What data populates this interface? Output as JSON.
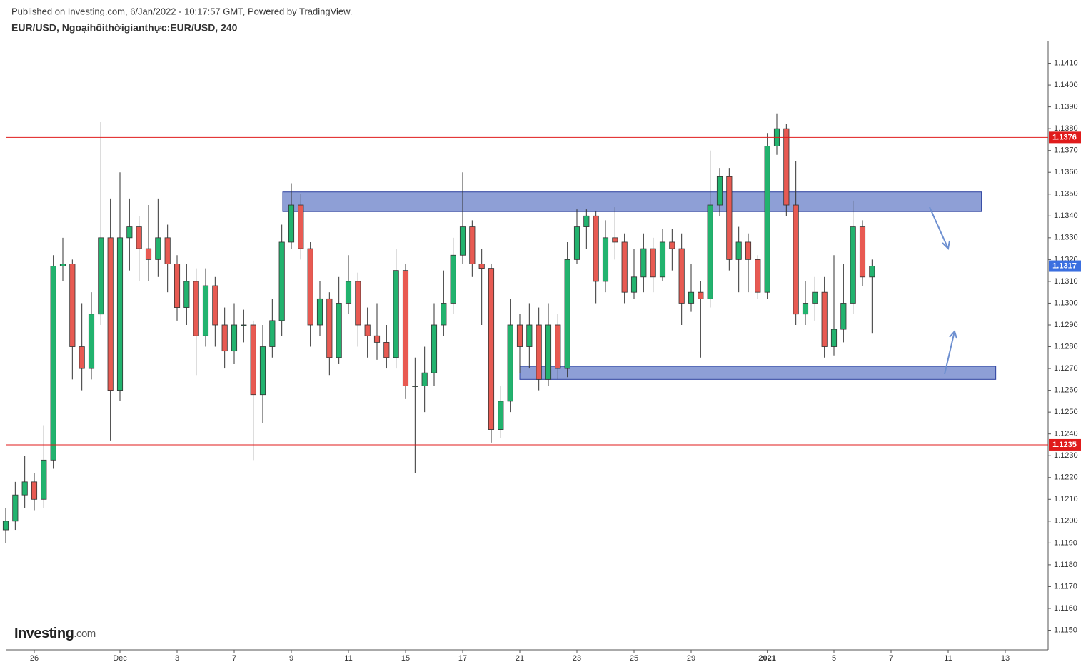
{
  "chart_data": {
    "type": "candlestick",
    "header": "Published on Investing.com, 6/Jan/2022 - 10:17:57 GMT, Powered by TradingView.",
    "title": "EUR/USD, Ngoạihốithờigianthực:EUR/USD, 240",
    "logo": "Investing",
    "logo_suffix": ".com",
    "up_color": "#22b36e",
    "down_color": "#e85a52",
    "xlim": [
      0,
      219
    ],
    "ylim": [
      1.1141,
      1.142
    ],
    "xticks": [
      {
        "value": 6,
        "label": "26"
      },
      {
        "value": 24,
        "label": "Dec"
      },
      {
        "value": 36,
        "label": "3"
      },
      {
        "value": 48,
        "label": "7"
      },
      {
        "value": 60,
        "label": "9"
      },
      {
        "value": 72,
        "label": "11"
      },
      {
        "value": 84,
        "label": "15"
      },
      {
        "value": 96,
        "label": "17"
      },
      {
        "value": 108,
        "label": "21"
      },
      {
        "value": 120,
        "label": "23"
      },
      {
        "value": 132,
        "label": "25"
      },
      {
        "value": 144,
        "label": "29"
      },
      {
        "value": 160,
        "label": "2021"
      },
      {
        "value": 174,
        "label": "5"
      },
      {
        "value": 186,
        "label": "7"
      },
      {
        "value": 198,
        "label": "11"
      },
      {
        "value": 210,
        "label": "13"
      }
    ],
    "yticks": [
      {
        "value": 1.115,
        "label": "1.1150"
      },
      {
        "value": 1.116,
        "label": "1.1160"
      },
      {
        "value": 1.117,
        "label": "1.1170"
      },
      {
        "value": 1.118,
        "label": "1.1180"
      },
      {
        "value": 1.119,
        "label": "1.1190"
      },
      {
        "value": 1.12,
        "label": "1.1200"
      },
      {
        "value": 1.121,
        "label": "1.1210"
      },
      {
        "value": 1.122,
        "label": "1.1220"
      },
      {
        "value": 1.123,
        "label": "1.1230"
      },
      {
        "value": 1.124,
        "label": "1.1240"
      },
      {
        "value": 1.125,
        "label": "1.1250"
      },
      {
        "value": 1.126,
        "label": "1.1260"
      },
      {
        "value": 1.127,
        "label": "1.1270"
      },
      {
        "value": 1.128,
        "label": "1.1280"
      },
      {
        "value": 1.129,
        "label": "1.1290"
      },
      {
        "value": 1.13,
        "label": "1.1300"
      },
      {
        "value": 1.131,
        "label": "1.1310"
      },
      {
        "value": 1.132,
        "label": "1.1320"
      },
      {
        "value": 1.133,
        "label": "1.1330"
      },
      {
        "value": 1.134,
        "label": "1.1340"
      },
      {
        "value": 1.135,
        "label": "1.1350"
      },
      {
        "value": 1.136,
        "label": "1.1360"
      },
      {
        "value": 1.137,
        "label": "1.1370"
      },
      {
        "value": 1.138,
        "label": "1.1380"
      },
      {
        "value": 1.139,
        "label": "1.1390"
      },
      {
        "value": 1.14,
        "label": "1.1400"
      },
      {
        "value": 1.141,
        "label": "1.1410"
      }
    ],
    "levels": [
      {
        "value": 1.1376,
        "color": "#e01b1b"
      },
      {
        "value": 1.1235,
        "color": "#e01b1b"
      }
    ],
    "price_line": {
      "value": 1.1317,
      "color": "#3b6fe0"
    },
    "zones": [
      {
        "x": [
          58.2,
          205
        ],
        "y": [
          1.1342,
          1.1351
        ]
      },
      {
        "x": [
          108,
          208
        ],
        "y": [
          1.1265,
          1.1271
        ]
      }
    ],
    "series": {
      "x": [
        0,
        2,
        4,
        6,
        8,
        10,
        12,
        14,
        16,
        18,
        20,
        22,
        24,
        26,
        28,
        30,
        32,
        34,
        36,
        38,
        40,
        42,
        44,
        46,
        48,
        50,
        52,
        54,
        56,
        58,
        60,
        62,
        64,
        66,
        68,
        70,
        72,
        74,
        76,
        78,
        80,
        82,
        84,
        86,
        88,
        90,
        92,
        94,
        96,
        98,
        100,
        102,
        104,
        106,
        108,
        110,
        112,
        114,
        116,
        118,
        120,
        122,
        124,
        126,
        128,
        130,
        132,
        134,
        136,
        138,
        140,
        142,
        144,
        146,
        148,
        150,
        152,
        154,
        156,
        158,
        160,
        162,
        164,
        166,
        168,
        170,
        172,
        174,
        176,
        178,
        180,
        182
      ],
      "open": [
        1.1196,
        1.12,
        1.1212,
        1.1218,
        1.121,
        1.1228,
        1.1317,
        1.1318,
        1.128,
        1.127,
        1.1295,
        1.133,
        1.126,
        1.133,
        1.1335,
        1.1325,
        1.132,
        1.133,
        1.1318,
        1.1298,
        1.131,
        1.1285,
        1.1308,
        1.129,
        1.1278,
        1.129,
        1.129,
        1.1258,
        1.128,
        1.1292,
        1.1328,
        1.1345,
        1.1325,
        1.129,
        1.1302,
        1.1275,
        1.13,
        1.131,
        1.129,
        1.1285,
        1.1282,
        1.1275,
        1.1315,
        1.1262,
        1.1262,
        1.1268,
        1.129,
        1.13,
        1.1322,
        1.1335,
        1.1318,
        1.1316,
        1.1242,
        1.1255,
        1.129,
        1.128,
        1.129,
        1.1265,
        1.129,
        1.127,
        1.132,
        1.1335,
        1.134,
        1.131,
        1.133,
        1.1328,
        1.1305,
        1.1312,
        1.1325,
        1.1312,
        1.1328,
        1.1325,
        1.13,
        1.1305,
        1.1302,
        1.1345,
        1.1358,
        1.132,
        1.1328,
        1.132,
        1.1305,
        1.1372,
        1.138,
        1.1345,
        1.1295,
        1.13,
        1.1305,
        1.128,
        1.1288,
        1.13,
        1.1335,
        1.1312
      ],
      "high": [
        1.1206,
        1.1218,
        1.123,
        1.1222,
        1.1244,
        1.1322,
        1.133,
        1.132,
        1.13,
        1.1305,
        1.1383,
        1.1348,
        1.136,
        1.1348,
        1.134,
        1.1345,
        1.1348,
        1.1336,
        1.1322,
        1.1318,
        1.1316,
        1.1316,
        1.1312,
        1.1298,
        1.13,
        1.1297,
        1.1292,
        1.129,
        1.1302,
        1.1336,
        1.1355,
        1.135,
        1.1328,
        1.131,
        1.1305,
        1.1312,
        1.1322,
        1.1314,
        1.1298,
        1.13,
        1.129,
        1.1325,
        1.1318,
        1.1275,
        1.128,
        1.13,
        1.1315,
        1.133,
        1.136,
        1.1338,
        1.1325,
        1.1318,
        1.1262,
        1.1302,
        1.1295,
        1.13,
        1.1298,
        1.13,
        1.1295,
        1.1328,
        1.1343,
        1.1343,
        1.1342,
        1.1338,
        1.1344,
        1.1332,
        1.1325,
        1.1332,
        1.133,
        1.1334,
        1.1334,
        1.1332,
        1.1318,
        1.131,
        1.137,
        1.1362,
        1.1362,
        1.1335,
        1.1332,
        1.1322,
        1.1378,
        1.1387,
        1.1382,
        1.1365,
        1.131,
        1.1312,
        1.1312,
        1.1322,
        1.1318,
        1.1347,
        1.1338,
        1.132
      ],
      "low": [
        1.119,
        1.1196,
        1.1206,
        1.1205,
        1.1206,
        1.1224,
        1.131,
        1.1265,
        1.126,
        1.1265,
        1.129,
        1.1237,
        1.1255,
        1.1315,
        1.131,
        1.131,
        1.1312,
        1.1305,
        1.1292,
        1.129,
        1.1267,
        1.128,
        1.128,
        1.127,
        1.1272,
        1.1282,
        1.1228,
        1.1245,
        1.1275,
        1.1285,
        1.1325,
        1.132,
        1.128,
        1.1285,
        1.1267,
        1.1272,
        1.1295,
        1.128,
        1.1275,
        1.1274,
        1.127,
        1.127,
        1.1256,
        1.1222,
        1.125,
        1.1262,
        1.1285,
        1.1295,
        1.1318,
        1.1312,
        1.129,
        1.1236,
        1.1238,
        1.125,
        1.1268,
        1.127,
        1.126,
        1.1262,
        1.1265,
        1.1266,
        1.1318,
        1.1325,
        1.13,
        1.1305,
        1.132,
        1.13,
        1.1302,
        1.1305,
        1.1305,
        1.131,
        1.1315,
        1.129,
        1.1296,
        1.1275,
        1.1298,
        1.134,
        1.1315,
        1.1305,
        1.1305,
        1.1302,
        1.1302,
        1.1368,
        1.134,
        1.129,
        1.129,
        1.1292,
        1.1275,
        1.1276,
        1.1282,
        1.1295,
        1.1308,
        1.1286
      ],
      "close": [
        1.12,
        1.1212,
        1.1218,
        1.121,
        1.1228,
        1.1317,
        1.1318,
        1.128,
        1.127,
        1.1295,
        1.133,
        1.126,
        1.133,
        1.1335,
        1.1325,
        1.132,
        1.133,
        1.1318,
        1.1298,
        1.131,
        1.1285,
        1.1308,
        1.129,
        1.1278,
        1.129,
        1.129,
        1.1258,
        1.128,
        1.1292,
        1.1328,
        1.1345,
        1.1325,
        1.129,
        1.1302,
        1.1275,
        1.13,
        1.131,
        1.129,
        1.1285,
        1.1282,
        1.1275,
        1.1315,
        1.1262,
        1.1262,
        1.1268,
        1.129,
        1.13,
        1.1322,
        1.1335,
        1.1318,
        1.1316,
        1.1242,
        1.1255,
        1.129,
        1.128,
        1.129,
        1.1265,
        1.129,
        1.127,
        1.132,
        1.1335,
        1.134,
        1.131,
        1.133,
        1.1328,
        1.1305,
        1.1312,
        1.1325,
        1.1312,
        1.1328,
        1.1325,
        1.13,
        1.1305,
        1.1302,
        1.1345,
        1.1358,
        1.132,
        1.1328,
        1.132,
        1.1305,
        1.1372,
        1.138,
        1.1345,
        1.1295,
        1.13,
        1.1305,
        1.128,
        1.1288,
        1.13,
        1.1335,
        1.1312,
        1.1317
      ]
    }
  }
}
